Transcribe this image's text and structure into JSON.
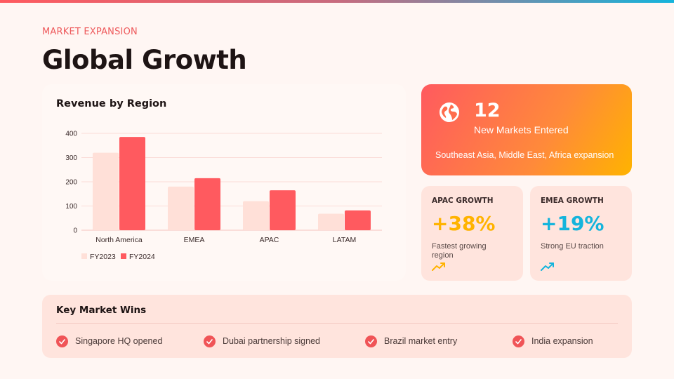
{
  "header": {
    "eyebrow": "MARKET EXPANSION",
    "title": "Global Growth"
  },
  "colors": {
    "accent": "#ff5a5f",
    "fy2023": "#ffe0d8",
    "fy2024": "#ff5a5f",
    "apac": "#ffb300",
    "emea": "#14b4dc"
  },
  "chart_data": {
    "type": "bar",
    "title": "Revenue by Region",
    "categories": [
      "North America",
      "EMEA",
      "APAC",
      "LATAM"
    ],
    "series": [
      {
        "name": "FY2023",
        "values": [
          320,
          180,
          120,
          68
        ]
      },
      {
        "name": "FY2024",
        "values": [
          385,
          215,
          165,
          82
        ]
      }
    ],
    "ylim": [
      0,
      400
    ],
    "yticks": [
      0,
      100,
      200,
      300,
      400
    ],
    "xlabel": "",
    "ylabel": "",
    "legend_position": "bottom-left",
    "grid": true
  },
  "markets": {
    "count": "12",
    "label": "New Markets Entered",
    "sub": "Southeast Asia, Middle East, Africa expansion",
    "icon": "globe-icon"
  },
  "stats": [
    {
      "label": "APAC GROWTH",
      "value": "+38%",
      "desc": "Fastest growing region",
      "icon": "trend-up-icon"
    },
    {
      "label": "EMEA GROWTH",
      "value": "+19%",
      "desc": "Strong EU traction",
      "icon": "trend-up-icon"
    }
  ],
  "wins": {
    "title": "Key Market Wins",
    "items": [
      "Singapore HQ opened",
      "Dubai partnership signed",
      "Brazil market entry",
      "India expansion"
    ]
  }
}
